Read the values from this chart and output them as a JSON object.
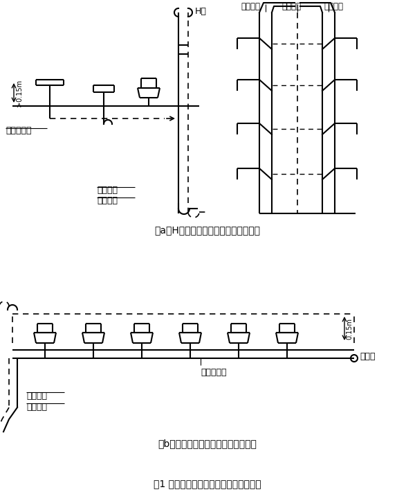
{
  "title": "图1 几种通气管与污水立管典型连接模式",
  "subtitle_a": "（a）H管与通气管和排水管的连接模式",
  "subtitle_b": "（b）环形通气管与排水管及连接模式",
  "bg_color": "#ffffff",
  "line_color": "#000000"
}
